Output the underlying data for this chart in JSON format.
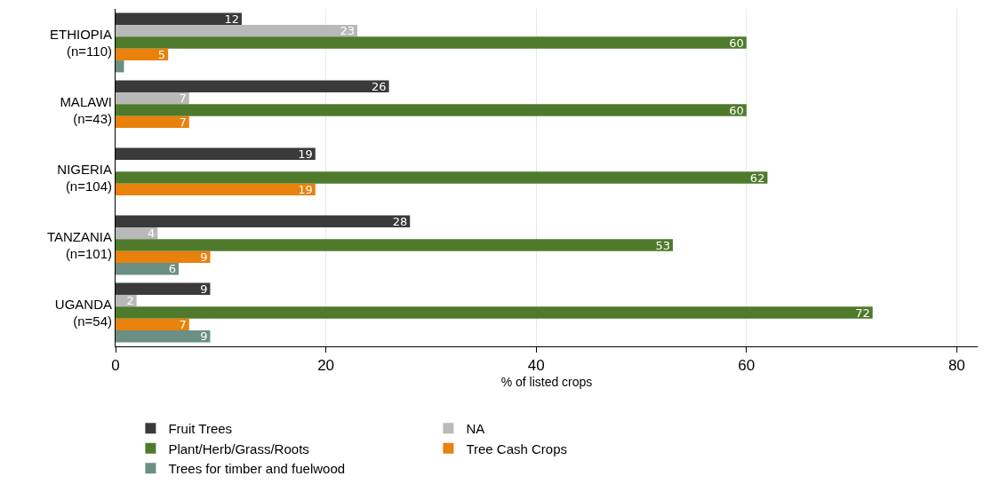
{
  "chart_data": {
    "type": "bar",
    "orientation": "horizontal",
    "xlabel": "% of listed crops",
    "categories": [
      "ETHIOPIA\n(n=110)",
      "MALAWI\n(n=43)",
      "NIGERIA\n(n=104)",
      "TANZANIA\n(n=101)",
      "UGANDA\n(n=54)"
    ],
    "series": [
      {
        "name": "Fruit Trees",
        "color": "#3a3a3a",
        "values": [
          12,
          26,
          19,
          28,
          9
        ],
        "value_labels": [
          "12",
          "26",
          "19",
          "28",
          "9"
        ]
      },
      {
        "name": "NA",
        "color": "#b9b9b9",
        "values": [
          23,
          7,
          null,
          4,
          2
        ],
        "value_labels": [
          "23",
          "7",
          null,
          "4",
          "2"
        ]
      },
      {
        "name": "Plant/Herb/Grass/Roots",
        "color": "#4f7a2c",
        "values": [
          60,
          60,
          62,
          53,
          72
        ],
        "value_labels": [
          "60",
          "60",
          "62",
          "53",
          "72"
        ]
      },
      {
        "name": "Tree Cash Crops",
        "color": "#e8820c",
        "values": [
          5,
          7,
          19,
          9,
          7
        ],
        "value_labels": [
          "5",
          "7",
          "19",
          "9",
          "7"
        ]
      },
      {
        "name": "Trees for timber and fuelwood",
        "color": "#6b8f84",
        "values": [
          0.8,
          null,
          null,
          6,
          9
        ],
        "value_labels": [
          null,
          null,
          null,
          "6",
          "9"
        ]
      }
    ],
    "xlim": [
      0,
      82
    ],
    "xticks": [
      0,
      20,
      40,
      60,
      80
    ],
    "grid": "x",
    "legend": "bottom"
  }
}
